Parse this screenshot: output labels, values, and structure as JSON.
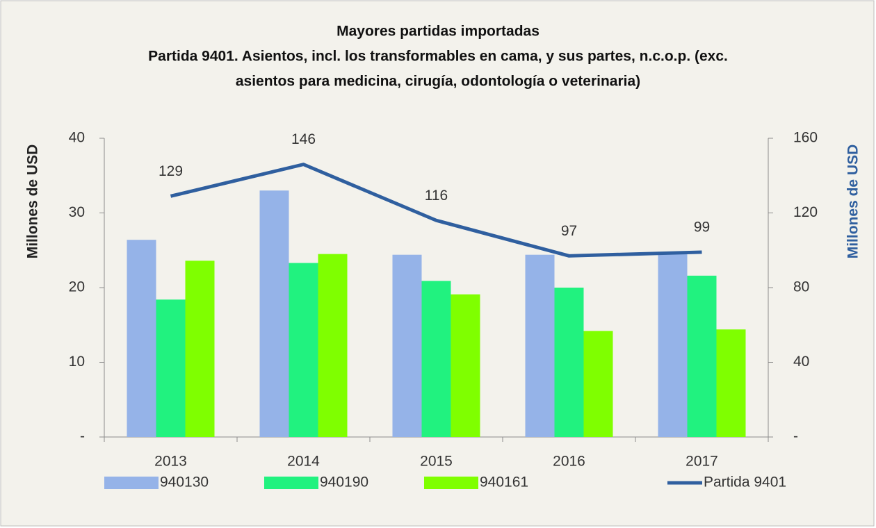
{
  "chart_data": {
    "type": "bar",
    "title": "Mayores partidas importadas",
    "subtitle": [
      "Partida 9401. Asientos, incl. los transformables en cama, y sus partes, n.c.o.p. (exc.",
      "asientos para medicina, cirugía, odontología o veterinaria)"
    ],
    "y_label": "Millones de USD",
    "y2_label": "Millones de USD",
    "categories": [
      "2013",
      "2014",
      "2015",
      "2016",
      "2017"
    ],
    "series": [
      {
        "name": "940130",
        "color": "#95b3e8",
        "type": "bar",
        "values": [
          26.4,
          33,
          24.4,
          24.4,
          24.8
        ]
      },
      {
        "name": "940190",
        "color": "#21f27f",
        "type": "bar",
        "values": [
          18.4,
          23.3,
          20.9,
          20,
          21.6
        ]
      },
      {
        "name": "940161",
        "color": "#7fff00",
        "type": "bar",
        "values": [
          23.6,
          24.5,
          19.1,
          14.2,
          14.4
        ]
      },
      {
        "name": "Partida 9401",
        "color": "#2f5f9f",
        "type": "line",
        "axis": "y2",
        "values": [
          129,
          146,
          116,
          97,
          99
        ],
        "data_labels": true
      }
    ],
    "ylim": [
      0,
      40
    ],
    "yticks": [
      {
        "value": 0,
        "label": "-"
      },
      10,
      20,
      30,
      40
    ],
    "y2lim": [
      0,
      160
    ],
    "y2ticks": [
      {
        "value": 0,
        "label": "-"
      },
      40,
      80,
      120,
      160
    ],
    "grid": false,
    "legend": "bottom"
  }
}
